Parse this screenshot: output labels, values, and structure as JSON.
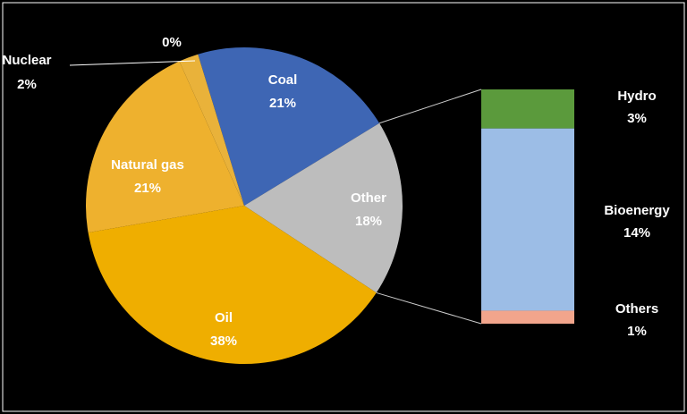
{
  "chart_data": {
    "type": "pie",
    "categories": [
      "Coal",
      "Other",
      "Oil",
      "Natural gas",
      "Nuclear",
      null
    ],
    "values": [
      21,
      18,
      38,
      21,
      2,
      0
    ],
    "value_labels": [
      "21%",
      "18%",
      "38%",
      "21%",
      "2%",
      "0%"
    ],
    "colors": [
      "#3e66b4",
      "#bdbdbd",
      "#efae00",
      "#eeb12e",
      "#e9b23a",
      "#e9b23a"
    ],
    "breakdown": {
      "categories": [
        "Hydro",
        "Bioenergy",
        "Others"
      ],
      "values": [
        3,
        14,
        1
      ],
      "value_labels": [
        "3%",
        "14%",
        "1%"
      ],
      "colors": [
        "#5b9a3c",
        "#9cbde6",
        "#f2a58c"
      ]
    }
  }
}
